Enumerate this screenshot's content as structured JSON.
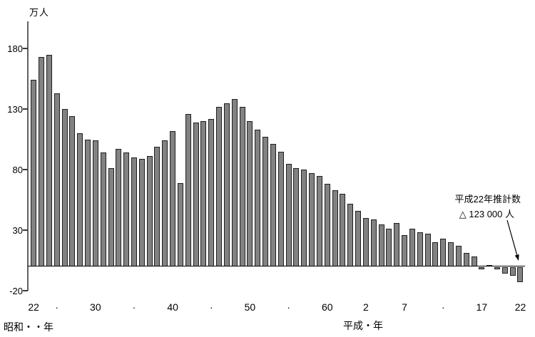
{
  "chart_data": {
    "type": "bar",
    "unit_label": "万人",
    "x_axis_caption_left": "昭和・・年",
    "x_axis_caption_right": "平成・年",
    "y_axis": {
      "ticks": [
        180,
        130,
        80,
        30,
        -20
      ],
      "ylim": [
        -20,
        200
      ],
      "grid": false
    },
    "x_tick_labels": [
      {
        "index": 0,
        "label": "22"
      },
      {
        "index": 3,
        "label": "·"
      },
      {
        "index": 8,
        "label": "30"
      },
      {
        "index": 13,
        "label": "·"
      },
      {
        "index": 18,
        "label": "40"
      },
      {
        "index": 23,
        "label": "·"
      },
      {
        "index": 28,
        "label": "50"
      },
      {
        "index": 33,
        "label": "·"
      },
      {
        "index": 38,
        "label": "60"
      },
      {
        "index": 43,
        "label": "2"
      },
      {
        "index": 48,
        "label": "7"
      },
      {
        "index": 53,
        "label": "·"
      },
      {
        "index": 58,
        "label": "17"
      },
      {
        "index": 63,
        "label": "22"
      }
    ],
    "values": [
      154,
      173,
      175,
      143,
      130,
      124,
      110,
      105,
      104,
      94,
      81,
      97,
      94,
      90,
      89,
      91,
      99,
      104,
      112,
      69,
      126,
      119,
      120,
      122,
      132,
      135,
      138,
      132,
      120,
      113,
      107,
      101,
      95,
      85,
      81,
      80,
      77,
      75,
      68,
      63,
      60,
      52,
      46,
      40,
      39,
      35,
      31,
      36,
      26,
      31,
      28,
      27,
      20,
      23,
      20,
      17,
      11,
      8,
      -2,
      1,
      -2,
      -5,
      -7,
      -12.3
    ],
    "annotation": {
      "line1": "平成22年推計数",
      "line2": "△ 123 000 人"
    },
    "colors": {
      "bar_fill": "#828282",
      "bar_border": "#1f1f1f",
      "axis": "#616161",
      "baseline": "#000000",
      "text": "#000000"
    },
    "legend": null,
    "title": ""
  }
}
